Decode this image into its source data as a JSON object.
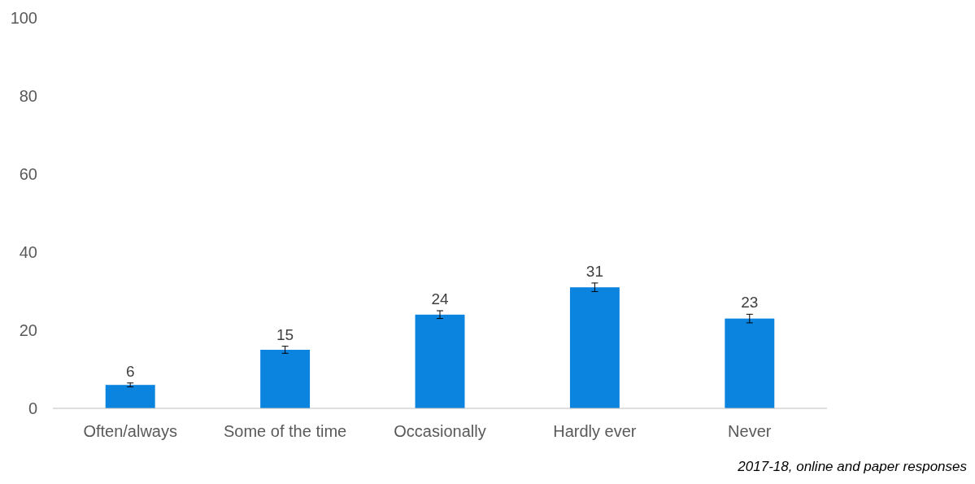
{
  "chart_data": {
    "type": "bar",
    "categories": [
      "Often/always",
      "Some of the time",
      "Occasionally",
      "Hardly ever",
      "Never"
    ],
    "values": [
      6,
      15,
      24,
      31,
      23
    ],
    "errors": [
      0.5,
      0.9,
      1.0,
      1.1,
      1.1
    ],
    "color": "#0b84e0",
    "ylim": [
      0,
      100
    ],
    "yticks": [
      0,
      20,
      40,
      60,
      80,
      100
    ],
    "data_labels": true,
    "grid": false,
    "annotations": [
      "2017-18, online and paper responses"
    ]
  }
}
